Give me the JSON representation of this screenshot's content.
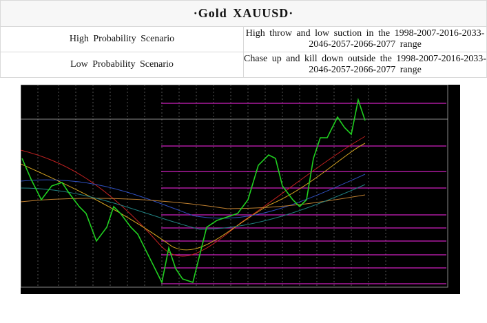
{
  "title": "·Gold  XAUUSD·",
  "table": {
    "rows": [
      [
        "High Probability Scenario",
        "High throw and low suction in the 1998-2007-2016-2033-2046-2057-2066-2077 range"
      ],
      [
        "Low Probability Scenario",
        "Chase up and kill down outside the 1998-2007-2016-2033-2046-2057-2066-2077 range"
      ]
    ]
  }
}
